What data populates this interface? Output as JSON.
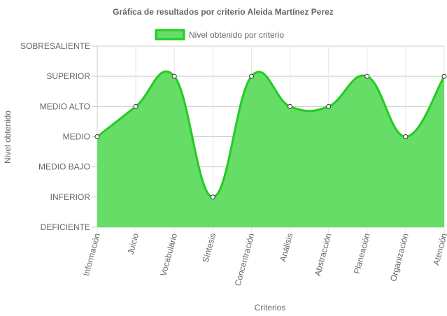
{
  "chart_data": {
    "type": "area",
    "title": "Gráfica de resultados por criterio Aleida Martínez Perez",
    "xlabel": "Criterios",
    "ylabel": "Nivel obtenido",
    "y_levels": [
      "DEFICIENTE",
      "INFERIOR",
      "MEDIO BAJO",
      "MEDIO",
      "MEDIO ALTO",
      "SUPERIOR",
      "SOBRESALIENTE"
    ],
    "ylim": [
      0,
      6
    ],
    "categories": [
      "Información",
      "Juicio",
      "Vocabulario",
      "Síntesis",
      "Concentración",
      "Análisis",
      "Abstracción",
      "Planeación",
      "Organización",
      "Atención"
    ],
    "series": [
      {
        "name": "Nivel obtenido por criterio",
        "values": [
          3,
          4,
          5,
          1,
          5,
          4,
          4,
          5,
          3,
          5
        ]
      }
    ],
    "legend_position": "top",
    "grid": true,
    "colors": {
      "fill": "#66dd66",
      "line": "#22cc22",
      "point_fill": "#ffffff",
      "point_stroke": "#333333",
      "grid": "#cccccc",
      "text": "#666666"
    }
  }
}
